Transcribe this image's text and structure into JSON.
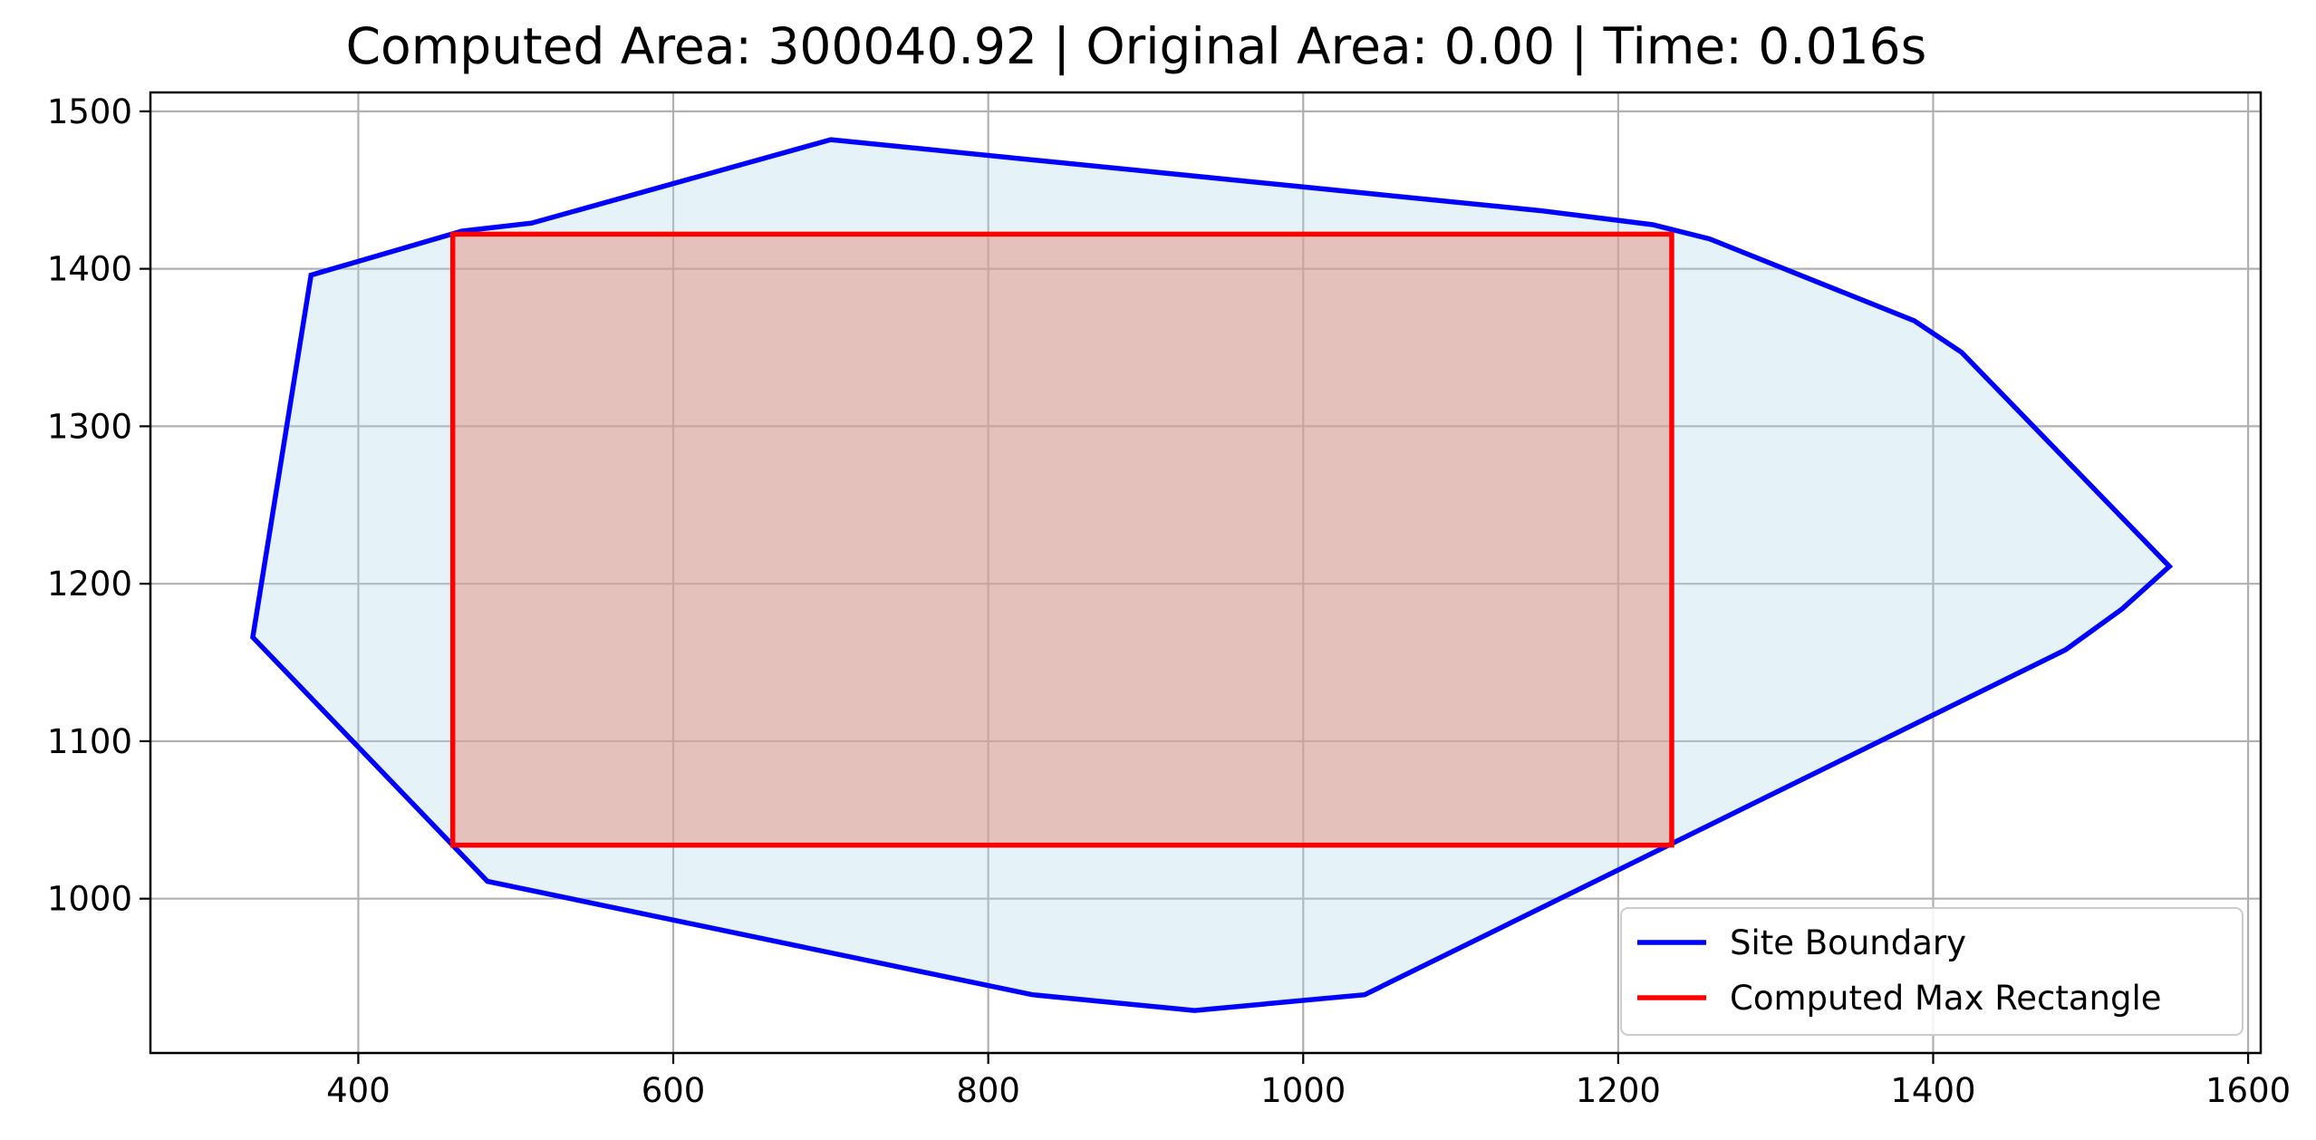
{
  "chart_data": {
    "type": "area",
    "title": "Computed Area: 300040.92 | Original Area: 0.00 | Time: 0.016s",
    "xlabel": "",
    "ylabel": "",
    "xlim": [
      268,
      1608
    ],
    "ylim": [
      902,
      1512
    ],
    "xticks": [
      400,
      600,
      800,
      1000,
      1200,
      1400,
      1600
    ],
    "yticks": [
      1000,
      1100,
      1200,
      1300,
      1400,
      1500
    ],
    "grid": true,
    "legend_position": "lower right",
    "series": [
      {
        "name": "Site Boundary",
        "color": "#0000ff",
        "fill": "#add8e6",
        "points": [
          [
            700,
            1482
          ],
          [
            1150,
            1437
          ],
          [
            1222,
            1428
          ],
          [
            1258,
            1419
          ],
          [
            1388,
            1367
          ],
          [
            1418,
            1347
          ],
          [
            1550,
            1211
          ],
          [
            1520,
            1184
          ],
          [
            1484,
            1158
          ],
          [
            1039,
            939
          ],
          [
            931,
            929
          ],
          [
            828,
            939
          ],
          [
            482,
            1011
          ],
          [
            333,
            1166
          ],
          [
            370,
            1396
          ],
          [
            466,
            1424
          ],
          [
            510,
            1429
          ]
        ]
      },
      {
        "name": "Computed Max Rectangle",
        "color": "#ff0000",
        "fill": "#e69080",
        "points": [
          [
            460,
            1034
          ],
          [
            1234,
            1034
          ],
          [
            1234,
            1422
          ],
          [
            460,
            1422
          ]
        ]
      }
    ]
  }
}
